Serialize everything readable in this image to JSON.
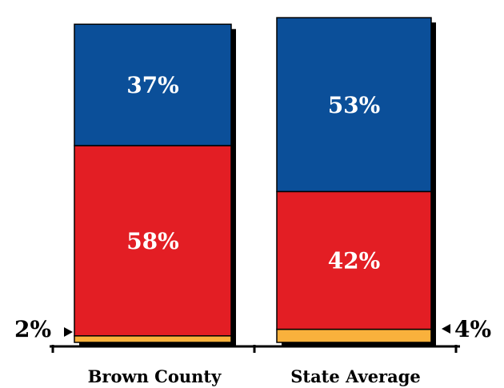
{
  "chart_data": {
    "type": "bar",
    "stacked": true,
    "categories": [
      "Brown County",
      "State Average"
    ],
    "series": [
      {
        "values": [
          2,
          4
        ],
        "color": "#F9B13C"
      },
      {
        "values": [
          58,
          42
        ],
        "color": "#E31E24"
      },
      {
        "values": [
          37,
          53
        ],
        "color": "#0B4F99"
      }
    ],
    "data_labels": [
      [
        "2%",
        "4%"
      ],
      [
        "58%",
        "42%"
      ],
      [
        "37%",
        "53%"
      ]
    ],
    "ylim": [
      0,
      100
    ],
    "grid": false,
    "legend": "none",
    "title": "",
    "xlabel": "",
    "ylabel": ""
  },
  "colors": {
    "background": "#ffffff",
    "axis": "#000000",
    "inside_label": "#ffffff",
    "outside_label": "#000000",
    "shadow": "#000000"
  }
}
